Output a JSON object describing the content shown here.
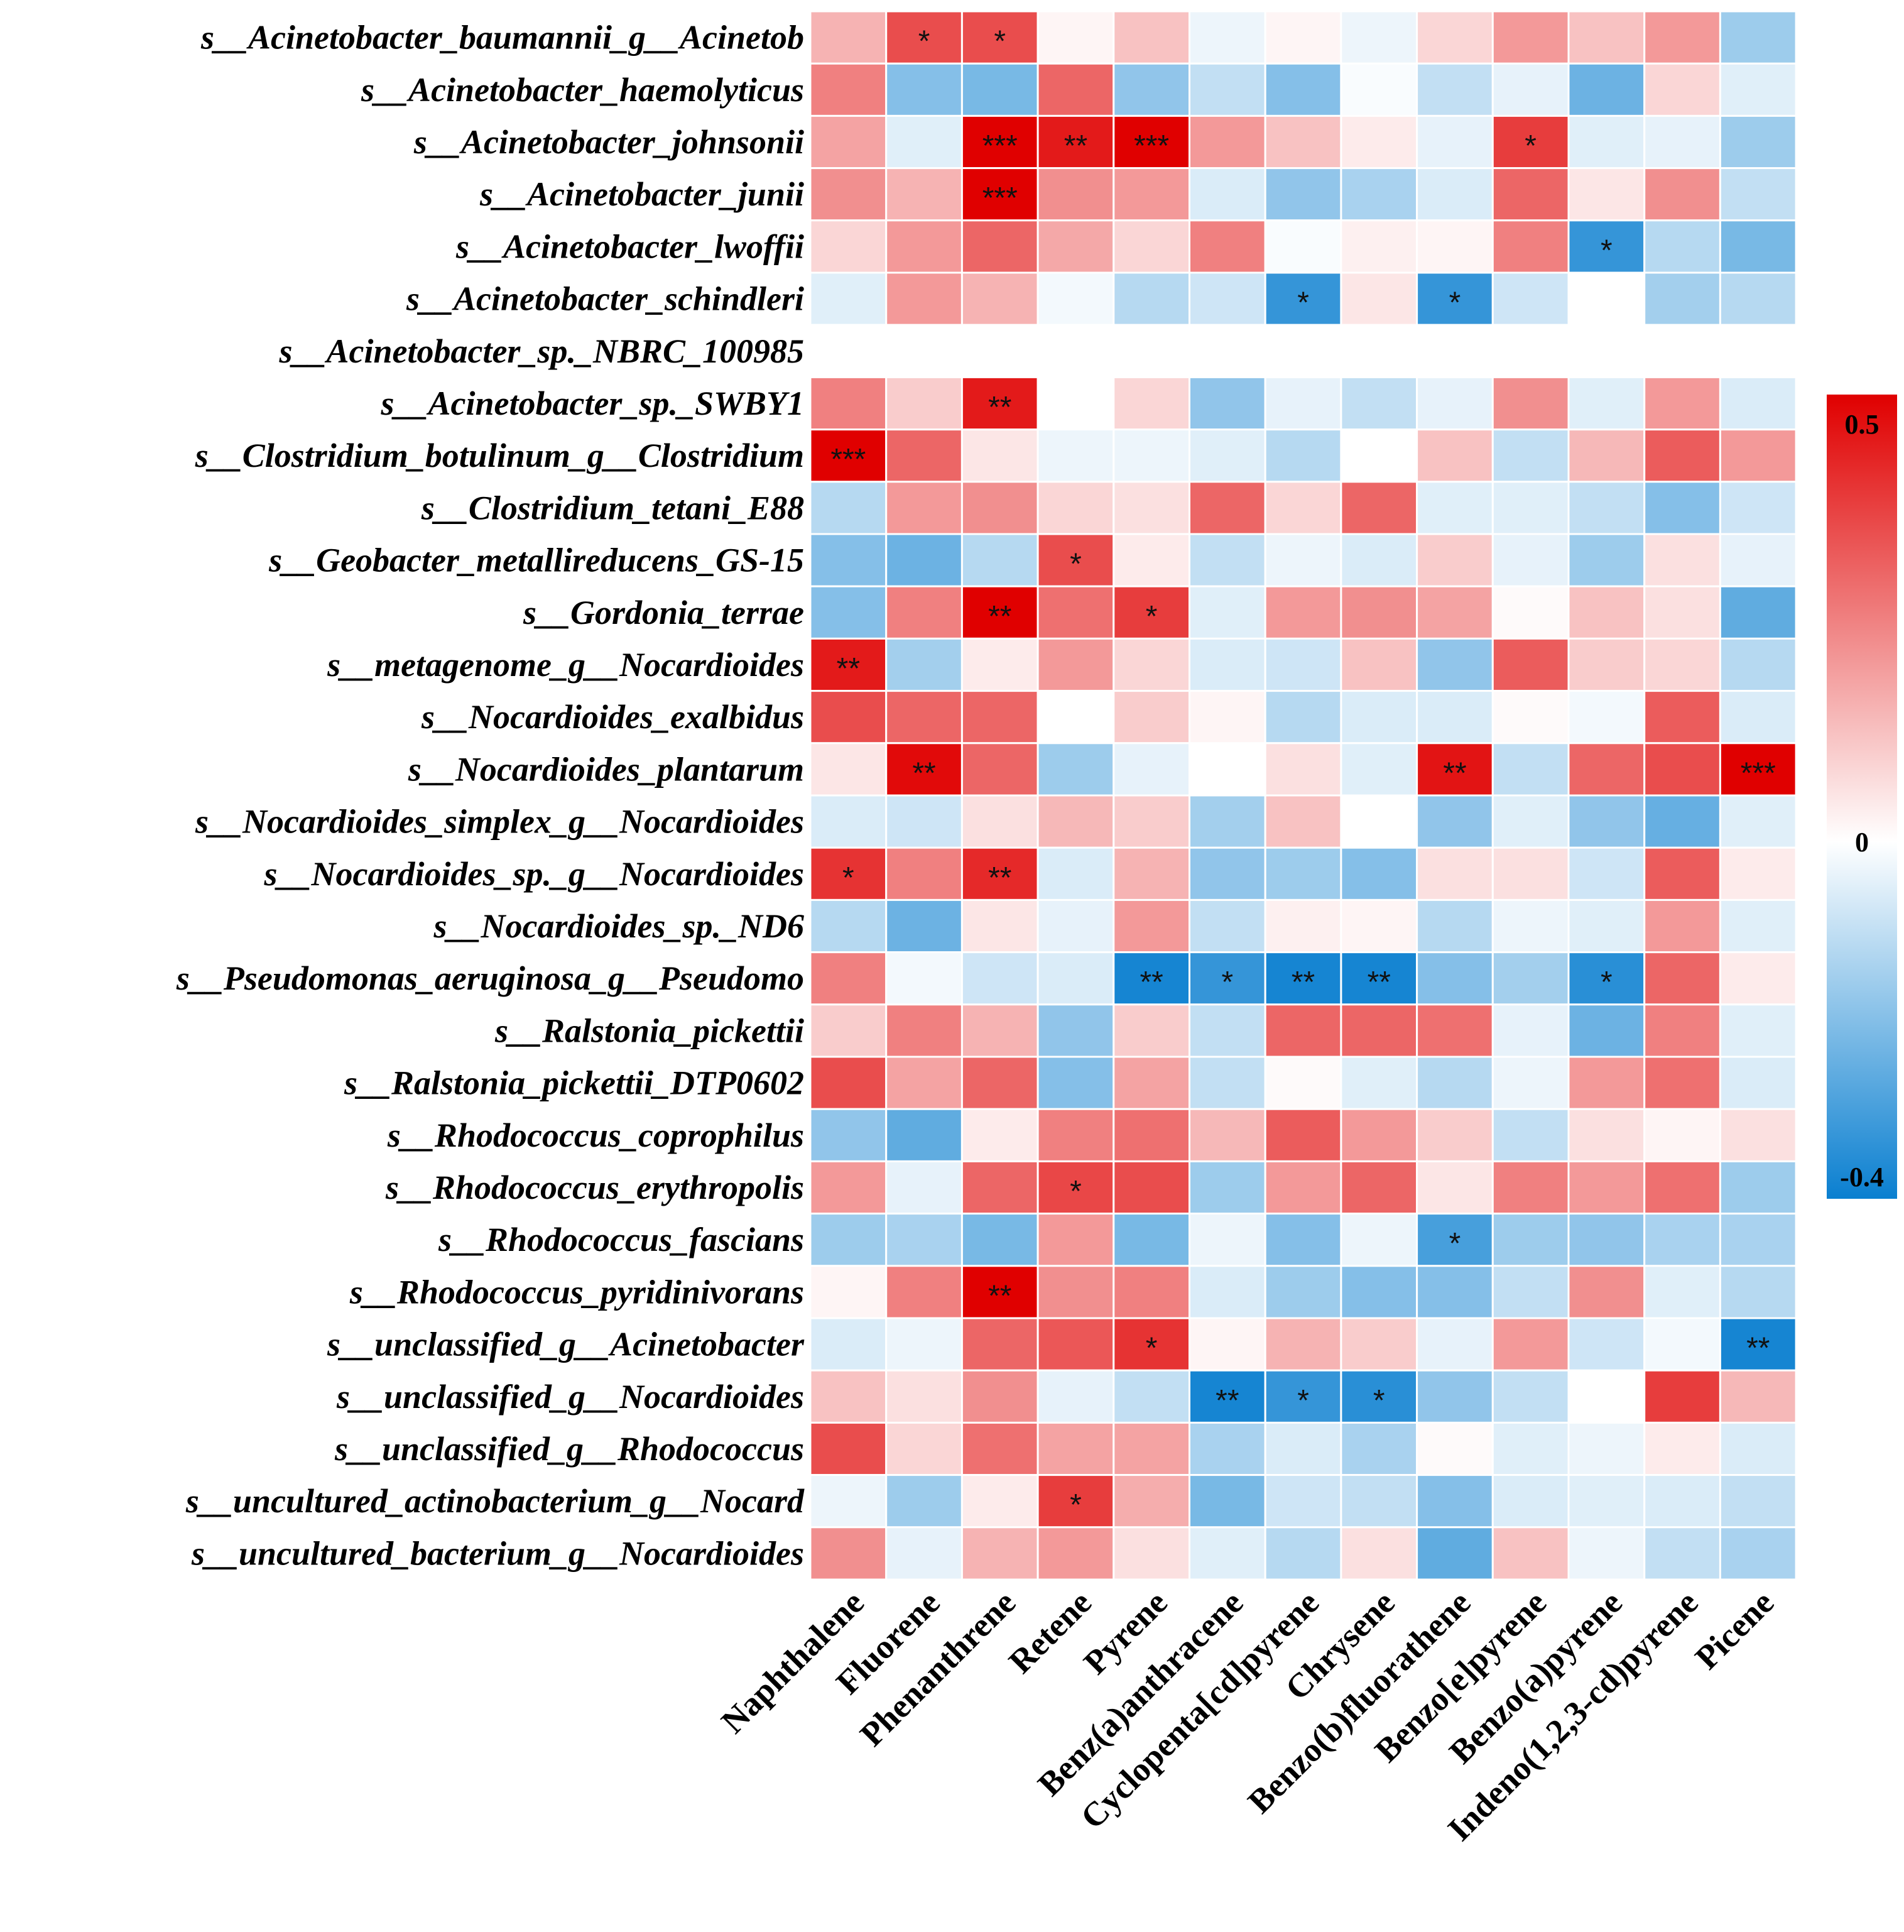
{
  "chart_data": {
    "type": "heatmap",
    "title": "",
    "columns": [
      "Naphthalene",
      "Fluorene",
      "Phenanthrene",
      "Retene",
      "Pyrene",
      "Benz(a)anthracene",
      "Cyclopenta[cd]pyrene",
      "Chrysene",
      "Benzo(b)fluorathene",
      "Benzo[e]pyrene",
      "Benzo(a)pyrene",
      "Indeno(1,2,3-cd)pyrene",
      "Picene"
    ],
    "rows": [
      "s__Acinetobacter_baumannii_g__Acinetob",
      "s__Acinetobacter_haemolyticus",
      "s__Acinetobacter_johnsonii",
      "s__Acinetobacter_junii",
      "s__Acinetobacter_lwoffii",
      "s__Acinetobacter_schindleri",
      "s__Acinetobacter_sp._NBRC_100985",
      "s__Acinetobacter_sp._SWBY1",
      "s__Clostridium_botulinum_g__Clostridium",
      "s__Clostridium_tetani_E88",
      "s__Geobacter_metallireducens_GS-15",
      "s__Gordonia_terrae",
      "s__metagenome_g__Nocardioides",
      "s__Nocardioides_exalbidus",
      "s__Nocardioides_plantarum",
      "s__Nocardioides_simplex_g__Nocardioides",
      "s__Nocardioides_sp._g__Nocardioides",
      "s__Nocardioides_sp._ND6",
      "s__Pseudomonas_aeruginosa_g__Pseudomo",
      "s__Ralstonia_pickettii",
      "s__Ralstonia_pickettii_DTP0602",
      "s__Rhodococcus_coprophilus",
      "s__Rhodococcus_erythropolis",
      "s__Rhodococcus_fascians",
      "s__Rhodococcus_pyridinivorans",
      "s__unclassified_g__Acinetobacter",
      "s__unclassified_g__Nocardioides",
      "s__unclassified_g__Rhodococcus",
      "s__uncultured_actinobacterium_g__Nocard",
      "s__uncultured_bacterium_g__Nocardioides"
    ],
    "values": [
      [
        0.15,
        0.35,
        0.35,
        0.02,
        0.12,
        -0.03,
        0.02,
        -0.03,
        0.08,
        0.2,
        0.12,
        0.2,
        -0.16
      ],
      [
        0.25,
        -0.2,
        -0.22,
        0.3,
        -0.18,
        -0.1,
        -0.2,
        -0.01,
        -0.1,
        -0.04,
        -0.24,
        0.08,
        -0.05
      ],
      [
        0.18,
        -0.05,
        0.5,
        0.45,
        0.5,
        0.2,
        0.12,
        0.04,
        -0.04,
        0.38,
        -0.05,
        -0.04,
        -0.16
      ],
      [
        0.22,
        0.15,
        0.5,
        0.22,
        0.2,
        -0.06,
        -0.18,
        -0.14,
        -0.06,
        0.3,
        0.05,
        0.22,
        -0.1
      ],
      [
        0.08,
        0.2,
        0.3,
        0.17,
        0.08,
        0.25,
        -0.01,
        0.03,
        0.02,
        0.25,
        -0.33,
        -0.12,
        -0.22
      ],
      [
        -0.05,
        0.2,
        0.15,
        -0.02,
        -0.12,
        -0.08,
        -0.33,
        0.05,
        -0.33,
        -0.08,
        0.0,
        -0.15,
        -0.12
      ],
      [
        null,
        null,
        null,
        null,
        null,
        null,
        null,
        null,
        null,
        null,
        null,
        null,
        null
      ],
      [
        0.25,
        0.1,
        0.45,
        0.0,
        0.08,
        -0.18,
        -0.04,
        -0.1,
        -0.04,
        0.22,
        -0.05,
        0.2,
        -0.06
      ],
      [
        0.5,
        0.3,
        0.05,
        -0.03,
        -0.03,
        -0.05,
        -0.12,
        0.0,
        0.12,
        -0.1,
        0.14,
        0.32,
        0.2
      ],
      [
        -0.12,
        0.2,
        0.22,
        0.08,
        0.06,
        0.3,
        0.08,
        0.3,
        -0.05,
        -0.05,
        -0.1,
        -0.2,
        -0.08
      ],
      [
        -0.2,
        -0.24,
        -0.12,
        0.35,
        0.04,
        -0.1,
        -0.03,
        -0.06,
        0.1,
        -0.04,
        -0.16,
        0.06,
        -0.04
      ],
      [
        -0.2,
        0.25,
        0.5,
        0.28,
        0.38,
        -0.05,
        0.2,
        0.22,
        0.18,
        0.01,
        0.12,
        0.06,
        -0.26
      ],
      [
        0.45,
        -0.15,
        0.04,
        0.2,
        0.08,
        -0.06,
        -0.08,
        0.12,
        -0.18,
        0.32,
        0.1,
        0.08,
        -0.12
      ],
      [
        0.35,
        0.3,
        0.3,
        0.0,
        0.1,
        0.02,
        -0.12,
        -0.06,
        -0.06,
        0.01,
        -0.02,
        0.32,
        -0.06
      ],
      [
        0.05,
        0.48,
        0.3,
        -0.16,
        -0.04,
        0.0,
        0.06,
        -0.05,
        0.46,
        -0.1,
        0.3,
        0.35,
        0.5
      ],
      [
        -0.06,
        -0.08,
        0.06,
        0.14,
        0.1,
        -0.15,
        0.12,
        0.0,
        -0.18,
        -0.05,
        -0.18,
        -0.25,
        -0.05
      ],
      [
        0.4,
        0.25,
        0.42,
        -0.06,
        0.15,
        -0.18,
        -0.16,
        -0.2,
        0.06,
        0.06,
        -0.08,
        0.32,
        0.04
      ],
      [
        -0.12,
        -0.24,
        0.05,
        -0.04,
        0.2,
        -0.1,
        0.03,
        0.02,
        -0.12,
        -0.03,
        -0.05,
        0.2,
        -0.05
      ],
      [
        0.25,
        -0.02,
        -0.08,
        -0.06,
        -0.38,
        -0.33,
        -0.38,
        -0.38,
        -0.2,
        -0.15,
        -0.35,
        0.3,
        0.04
      ],
      [
        0.1,
        0.25,
        0.15,
        -0.18,
        0.1,
        -0.1,
        0.3,
        0.3,
        0.28,
        -0.04,
        -0.24,
        0.25,
        -0.05
      ],
      [
        0.35,
        0.18,
        0.3,
        -0.2,
        0.18,
        -0.1,
        0.01,
        -0.05,
        -0.12,
        -0.03,
        0.2,
        0.28,
        -0.06
      ],
      [
        -0.18,
        -0.26,
        0.04,
        0.25,
        0.28,
        0.14,
        0.32,
        0.2,
        0.1,
        -0.1,
        0.06,
        0.02,
        0.06
      ],
      [
        0.2,
        -0.04,
        0.3,
        0.36,
        0.35,
        -0.16,
        0.2,
        0.3,
        0.05,
        0.25,
        0.2,
        0.28,
        -0.16
      ],
      [
        -0.16,
        -0.14,
        -0.22,
        0.2,
        -0.22,
        -0.03,
        -0.2,
        -0.03,
        -0.3,
        -0.16,
        -0.18,
        -0.14,
        -0.14
      ],
      [
        0.02,
        0.25,
        0.5,
        0.22,
        0.25,
        -0.06,
        -0.16,
        -0.2,
        -0.2,
        -0.1,
        0.22,
        -0.05,
        -0.12
      ],
      [
        -0.06,
        -0.03,
        0.3,
        0.33,
        0.4,
        0.02,
        0.15,
        0.1,
        -0.04,
        0.2,
        -0.08,
        -0.02,
        -0.38
      ],
      [
        0.12,
        0.06,
        0.22,
        -0.04,
        -0.1,
        -0.38,
        -0.33,
        -0.35,
        -0.18,
        -0.1,
        0.0,
        0.38,
        0.14
      ],
      [
        0.35,
        0.08,
        0.28,
        0.18,
        0.18,
        -0.14,
        -0.06,
        -0.14,
        0.01,
        -0.05,
        -0.03,
        0.04,
        -0.06
      ],
      [
        -0.03,
        -0.16,
        0.04,
        0.38,
        0.16,
        -0.22,
        -0.08,
        -0.1,
        -0.2,
        -0.06,
        -0.05,
        -0.06,
        -0.1
      ],
      [
        0.22,
        -0.04,
        0.15,
        0.2,
        0.06,
        -0.05,
        -0.12,
        0.06,
        -0.26,
        0.12,
        -0.03,
        -0.1,
        -0.14
      ]
    ],
    "significance": [
      [
        "",
        "*",
        "*",
        "",
        "",
        "",
        "",
        "",
        "",
        "",
        "",
        "",
        ""
      ],
      [
        "",
        "",
        "",
        "",
        "",
        "",
        "",
        "",
        "",
        "",
        "",
        "",
        ""
      ],
      [
        "",
        "",
        "***",
        "**",
        "***",
        "",
        "",
        "",
        "",
        "*",
        "",
        "",
        ""
      ],
      [
        "",
        "",
        "***",
        "",
        "",
        "",
        "",
        "",
        "",
        "",
        "",
        "",
        ""
      ],
      [
        "",
        "",
        "",
        "",
        "",
        "",
        "",
        "",
        "",
        "",
        "*",
        "",
        ""
      ],
      [
        "",
        "",
        "",
        "",
        "",
        "",
        "*",
        "",
        "*",
        "",
        "",
        "",
        ""
      ],
      [
        "",
        "",
        "",
        "",
        "",
        "",
        "",
        "",
        "",
        "",
        "",
        "",
        ""
      ],
      [
        "",
        "",
        "**",
        "",
        "",
        "",
        "",
        "",
        "",
        "",
        "",
        "",
        ""
      ],
      [
        "***",
        "",
        "",
        "",
        "",
        "",
        "",
        "",
        "",
        "",
        "",
        "",
        ""
      ],
      [
        "",
        "",
        "",
        "",
        "",
        "",
        "",
        "",
        "",
        "",
        "",
        "",
        ""
      ],
      [
        "",
        "",
        "",
        "*",
        "",
        "",
        "",
        "",
        "",
        "",
        "",
        "",
        ""
      ],
      [
        "",
        "",
        "**",
        "",
        "*",
        "",
        "",
        "",
        "",
        "",
        "",
        "",
        ""
      ],
      [
        "**",
        "",
        "",
        "",
        "",
        "",
        "",
        "",
        "",
        "",
        "",
        "",
        ""
      ],
      [
        "",
        "",
        "",
        "",
        "",
        "",
        "",
        "",
        "",
        "",
        "",
        "",
        ""
      ],
      [
        "",
        "**",
        "",
        "",
        "",
        "",
        "",
        "",
        "**",
        "",
        "",
        "",
        "***"
      ],
      [
        "",
        "",
        "",
        "",
        "",
        "",
        "",
        "",
        "",
        "",
        "",
        "",
        ""
      ],
      [
        "*",
        "",
        "**",
        "",
        "",
        "",
        "",
        "",
        "",
        "",
        "",
        "",
        ""
      ],
      [
        "",
        "",
        "",
        "",
        "",
        "",
        "",
        "",
        "",
        "",
        "",
        "",
        ""
      ],
      [
        "",
        "",
        "",
        "",
        "**",
        "*",
        "**",
        "**",
        "",
        "",
        "*",
        "",
        ""
      ],
      [
        "",
        "",
        "",
        "",
        "",
        "",
        "",
        "",
        "",
        "",
        "",
        "",
        ""
      ],
      [
        "",
        "",
        "",
        "",
        "",
        "",
        "",
        "",
        "",
        "",
        "",
        "",
        ""
      ],
      [
        "",
        "",
        "",
        "",
        "",
        "",
        "",
        "",
        "",
        "",
        "",
        "",
        ""
      ],
      [
        "",
        "",
        "",
        "*",
        "",
        "",
        "",
        "",
        "",
        "",
        "",
        "",
        ""
      ],
      [
        "",
        "",
        "",
        "",
        "",
        "",
        "",
        "",
        "*",
        "",
        "",
        "",
        ""
      ],
      [
        "",
        "",
        "**",
        "",
        "",
        "",
        "",
        "",
        "",
        "",
        "",
        "",
        ""
      ],
      [
        "",
        "",
        "",
        "",
        "*",
        "",
        "",
        "",
        "",
        "",
        "",
        "",
        "**"
      ],
      [
        "",
        "",
        "",
        "",
        "",
        "**",
        "*",
        "*",
        "",
        "",
        "",
        "",
        ""
      ],
      [
        "",
        "",
        "",
        "",
        "",
        "",
        "",
        "",
        "",
        "",
        "",
        "",
        ""
      ],
      [
        "",
        "",
        "",
        "*",
        "",
        "",
        "",
        "",
        "",
        "",
        "",
        "",
        ""
      ],
      [
        "",
        "",
        "",
        "",
        "",
        "",
        "",
        "",
        "",
        "",
        "",
        "",
        ""
      ]
    ],
    "color_scale": {
      "min": -0.4,
      "mid": 0,
      "max": 0.5,
      "min_label": "-0.4",
      "mid_label": "0",
      "max_label": "0.5",
      "min_color": "#0a7fd0",
      "mid_color": "#ffffff",
      "max_color": "#e00000",
      "missing_color": "#ffffff",
      "grid_color": "#ffffff"
    }
  }
}
